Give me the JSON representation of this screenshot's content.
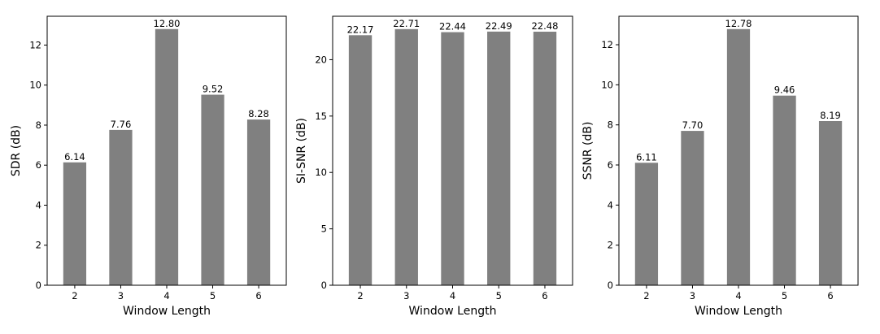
{
  "chart_data": [
    {
      "type": "bar",
      "categories": [
        "2",
        "3",
        "4",
        "5",
        "6"
      ],
      "values": [
        6.14,
        7.76,
        12.8,
        9.52,
        8.28
      ],
      "value_labels": [
        "6.14",
        "7.76",
        "12.80",
        "9.52",
        "8.28"
      ],
      "xlabel": "Window Length",
      "ylabel": "SDR (dB)",
      "ylim": [
        0,
        13.44
      ],
      "yticks": [
        "0",
        "2",
        "4",
        "6",
        "8",
        "10",
        "12"
      ],
      "bar_color": "#808080"
    },
    {
      "type": "bar",
      "categories": [
        "2",
        "3",
        "4",
        "5",
        "6"
      ],
      "values": [
        22.17,
        22.71,
        22.44,
        22.49,
        22.48
      ],
      "value_labels": [
        "22.17",
        "22.71",
        "22.44",
        "22.49",
        "22.48"
      ],
      "xlabel": "Window Length",
      "ylabel": "SI-SNR (dB)",
      "ylim": [
        0,
        23.85
      ],
      "yticks": [
        "0",
        "5",
        "10",
        "15",
        "20"
      ],
      "bar_color": "#808080"
    },
    {
      "type": "bar",
      "categories": [
        "2",
        "3",
        "4",
        "5",
        "6"
      ],
      "values": [
        6.11,
        7.7,
        12.78,
        9.46,
        8.19
      ],
      "value_labels": [
        "6.11",
        "7.70",
        "12.78",
        "9.46",
        "8.19"
      ],
      "xlabel": "Window Length",
      "ylabel": "SSNR (dB)",
      "ylim": [
        0,
        13.42
      ],
      "yticks": [
        "0",
        "2",
        "4",
        "6",
        "8",
        "10",
        "12"
      ],
      "bar_color": "#808080"
    }
  ]
}
